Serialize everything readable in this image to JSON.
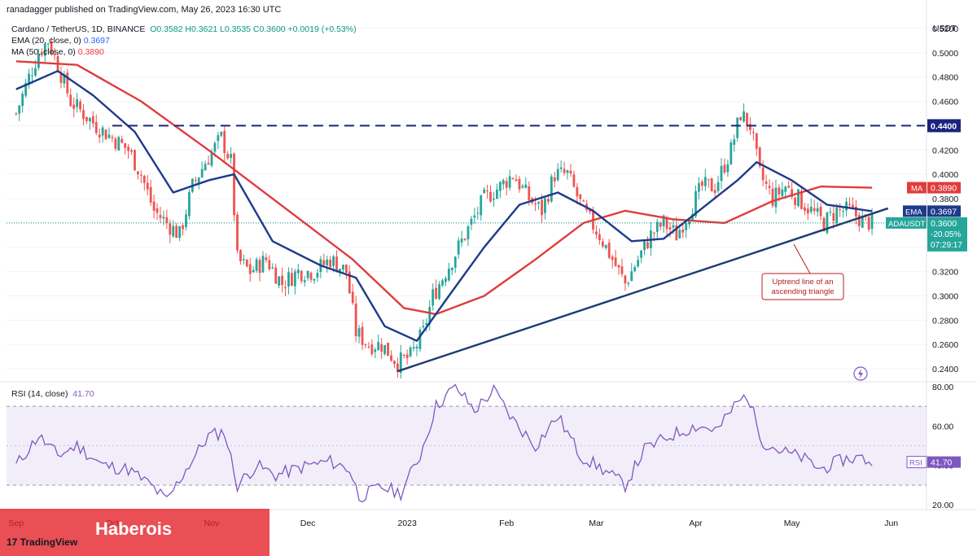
{
  "header": {
    "published_by": "ranadagger published on TradingView.com, May 26, 2023 16:30 UTC"
  },
  "legend": {
    "symbol": "Cardano / TetherUS, 1D, BINANCE",
    "ohlc": "O0.3582 H0.3621 L0.3535 C0.3600 +0.0019 (+0.53%)",
    "ema_label": "EMA (20, close, 0)",
    "ema_value": "0.3697",
    "ma_label": "MA (50, close, 0)",
    "ma_value": "0.3890"
  },
  "rsi": {
    "label": "RSI (14, close)",
    "value": "41.70"
  },
  "annotation": {
    "line1": "Uptrend line of an",
    "line2": "ascending triangle"
  },
  "branding": {
    "logo_text": "TradingView",
    "watermark": "Haberois"
  },
  "colors": {
    "up": "#26a69a",
    "down": "#ef5350",
    "ema": "#1e3a8a",
    "ma": "#e03c3c",
    "rsi": "#7e57c2",
    "resistance": "#1a237e",
    "trendline": "#1e3a6e"
  },
  "chart_data": {
    "type": "candlestick",
    "currency": "USDT",
    "ylim": [
      0.23,
      0.53
    ],
    "y_ticks": [
      "0.5200",
      "0.5000",
      "0.4800",
      "0.4600",
      "0.4400",
      "0.4200",
      "0.4000",
      "0.3800",
      "0.3600",
      "0.3400",
      "0.3200",
      "0.3000",
      "0.2800",
      "0.2600",
      "0.2400"
    ],
    "x_ticks": [
      "Sep",
      "Oct",
      "Nov",
      "Dec",
      "2023",
      "Feb",
      "Mar",
      "Apr",
      "May",
      "Jun"
    ],
    "resistance_level": 0.44,
    "resistance_label": "0.4400",
    "trendline": {
      "start": [
        "2022-12-29",
        0.238
      ],
      "end": [
        "2023-05-31",
        0.372
      ]
    },
    "price_labels": [
      {
        "tag": "MA",
        "value": "0.3890"
      },
      {
        "tag": "EMA",
        "value": "0.3697"
      },
      {
        "tag": "ADAUSDT",
        "value": "0.3600",
        "change": "-20.05%",
        "countdown": "07:29:17"
      }
    ],
    "close_path": [
      [
        "2022-09-01",
        0.45
      ],
      [
        "2022-09-05",
        0.48
      ],
      [
        "2022-09-08",
        0.5
      ],
      [
        "2022-09-11",
        0.51
      ],
      [
        "2022-09-14",
        0.49
      ],
      [
        "2022-09-18",
        0.46
      ],
      [
        "2022-09-22",
        0.45
      ],
      [
        "2022-09-26",
        0.44
      ],
      [
        "2022-10-01",
        0.43
      ],
      [
        "2022-10-06",
        0.42
      ],
      [
        "2022-10-10",
        0.4
      ],
      [
        "2022-10-14",
        0.37
      ],
      [
        "2022-10-18",
        0.36
      ],
      [
        "2022-10-22",
        0.35
      ],
      [
        "2022-10-26",
        0.39
      ],
      [
        "2022-10-30",
        0.41
      ],
      [
        "2022-11-04",
        0.43
      ],
      [
        "2022-11-07",
        0.41
      ],
      [
        "2022-11-09",
        0.33
      ],
      [
        "2022-11-13",
        0.32
      ],
      [
        "2022-11-18",
        0.33
      ],
      [
        "2022-11-23",
        0.31
      ],
      [
        "2022-11-28",
        0.32
      ],
      [
        "2022-12-03",
        0.32
      ],
      [
        "2022-12-08",
        0.33
      ],
      [
        "2022-12-13",
        0.32
      ],
      [
        "2022-12-16",
        0.27
      ],
      [
        "2022-12-20",
        0.26
      ],
      [
        "2022-12-24",
        0.26
      ],
      [
        "2022-12-29",
        0.245
      ],
      [
        "2023-01-02",
        0.25
      ],
      [
        "2023-01-06",
        0.27
      ],
      [
        "2023-01-09",
        0.3
      ],
      [
        "2023-01-13",
        0.32
      ],
      [
        "2023-01-17",
        0.34
      ],
      [
        "2023-01-21",
        0.36
      ],
      [
        "2023-01-25",
        0.38
      ],
      [
        "2023-01-30",
        0.39
      ],
      [
        "2023-02-03",
        0.4
      ],
      [
        "2023-02-08",
        0.38
      ],
      [
        "2023-02-12",
        0.37
      ],
      [
        "2023-02-16",
        0.4
      ],
      [
        "2023-02-20",
        0.4
      ],
      [
        "2023-02-25",
        0.37
      ],
      [
        "2023-03-02",
        0.35
      ],
      [
        "2023-03-06",
        0.33
      ],
      [
        "2023-03-10",
        0.31
      ],
      [
        "2023-03-14",
        0.33
      ],
      [
        "2023-03-18",
        0.35
      ],
      [
        "2023-03-22",
        0.36
      ],
      [
        "2023-03-26",
        0.35
      ],
      [
        "2023-03-30",
        0.37
      ],
      [
        "2023-04-03",
        0.39
      ],
      [
        "2023-04-07",
        0.39
      ],
      [
        "2023-04-12",
        0.42
      ],
      [
        "2023-04-15",
        0.45
      ],
      [
        "2023-04-18",
        0.44
      ],
      [
        "2023-04-21",
        0.4
      ],
      [
        "2023-04-25",
        0.38
      ],
      [
        "2023-04-29",
        0.39
      ],
      [
        "2023-05-03",
        0.38
      ],
      [
        "2023-05-07",
        0.37
      ],
      [
        "2023-05-11",
        0.36
      ],
      [
        "2023-05-15",
        0.37
      ],
      [
        "2023-05-19",
        0.37
      ],
      [
        "2023-05-23",
        0.362
      ],
      [
        "2023-05-26",
        0.36
      ]
    ],
    "ema20_path": [
      [
        "2022-09-01",
        0.47
      ],
      [
        "2022-09-14",
        0.485
      ],
      [
        "2022-09-25",
        0.465
      ],
      [
        "2022-10-08",
        0.435
      ],
      [
        "2022-10-20",
        0.385
      ],
      [
        "2022-10-31",
        0.395
      ],
      [
        "2022-11-08",
        0.4
      ],
      [
        "2022-11-20",
        0.345
      ],
      [
        "2022-12-05",
        0.325
      ],
      [
        "2022-12-16",
        0.315
      ],
      [
        "2022-12-25",
        0.275
      ],
      [
        "2023-01-04",
        0.263
      ],
      [
        "2023-01-14",
        0.3
      ],
      [
        "2023-01-25",
        0.34
      ],
      [
        "2023-02-05",
        0.375
      ],
      [
        "2023-02-17",
        0.385
      ],
      [
        "2023-02-28",
        0.37
      ],
      [
        "2023-03-12",
        0.345
      ],
      [
        "2023-03-22",
        0.347
      ],
      [
        "2023-04-02",
        0.37
      ],
      [
        "2023-04-14",
        0.395
      ],
      [
        "2023-04-20",
        0.41
      ],
      [
        "2023-05-01",
        0.395
      ],
      [
        "2023-05-12",
        0.375
      ],
      [
        "2023-05-26",
        0.3697
      ]
    ],
    "ma50_path": [
      [
        "2022-09-01",
        0.493
      ],
      [
        "2022-09-20",
        0.49
      ],
      [
        "2022-10-10",
        0.46
      ],
      [
        "2022-10-31",
        0.42
      ],
      [
        "2022-11-25",
        0.37
      ],
      [
        "2022-12-15",
        0.33
      ],
      [
        "2022-12-31",
        0.29
      ],
      [
        "2023-01-10",
        0.285
      ],
      [
        "2023-01-25",
        0.3
      ],
      [
        "2023-02-10",
        0.33
      ],
      [
        "2023-02-25",
        0.36
      ],
      [
        "2023-03-10",
        0.37
      ],
      [
        "2023-03-25",
        0.363
      ],
      [
        "2023-04-10",
        0.36
      ],
      [
        "2023-04-25",
        0.378
      ],
      [
        "2023-05-10",
        0.39
      ],
      [
        "2023-05-26",
        0.389
      ]
    ],
    "rsi_ylim": [
      18,
      82
    ],
    "rsi_ticks": [
      "80.00",
      "60.00",
      "40.00",
      "20.00"
    ],
    "rsi_levels": [
      70,
      30
    ],
    "rsi_path": [
      [
        "2022-09-01",
        40
      ],
      [
        "2022-09-08",
        55
      ],
      [
        "2022-09-14",
        45
      ],
      [
        "2022-09-20",
        50
      ],
      [
        "2022-09-28",
        40
      ],
      [
        "2022-10-06",
        38
      ],
      [
        "2022-10-13",
        30
      ],
      [
        "2022-10-18",
        22
      ],
      [
        "2022-10-24",
        38
      ],
      [
        "2022-10-31",
        55
      ],
      [
        "2022-11-05",
        57
      ],
      [
        "2022-11-09",
        30
      ],
      [
        "2022-11-15",
        40
      ],
      [
        "2022-11-21",
        35
      ],
      [
        "2022-12-01",
        40
      ],
      [
        "2022-12-08",
        42
      ],
      [
        "2022-12-14",
        38
      ],
      [
        "2022-12-17",
        24
      ],
      [
        "2022-12-24",
        29
      ],
      [
        "2022-12-30",
        26
      ],
      [
        "2023-01-05",
        45
      ],
      [
        "2023-01-10",
        70
      ],
      [
        "2023-01-16",
        80
      ],
      [
        "2023-01-22",
        68
      ],
      [
        "2023-01-28",
        78
      ],
      [
        "2023-02-03",
        63
      ],
      [
        "2023-02-10",
        50
      ],
      [
        "2023-02-17",
        65
      ],
      [
        "2023-02-24",
        45
      ],
      [
        "2023-03-03",
        38
      ],
      [
        "2023-03-10",
        30
      ],
      [
        "2023-03-16",
        48
      ],
      [
        "2023-03-24",
        55
      ],
      [
        "2023-04-01",
        60
      ],
      [
        "2023-04-08",
        58
      ],
      [
        "2023-04-13",
        70
      ],
      [
        "2023-04-17",
        76
      ],
      [
        "2023-04-22",
        52
      ],
      [
        "2023-04-28",
        47
      ],
      [
        "2023-05-04",
        44
      ],
      [
        "2023-05-10",
        38
      ],
      [
        "2023-05-17",
        43
      ],
      [
        "2023-05-22",
        44
      ],
      [
        "2023-05-26",
        41.7
      ]
    ],
    "rsi_value_label": "41.70"
  }
}
